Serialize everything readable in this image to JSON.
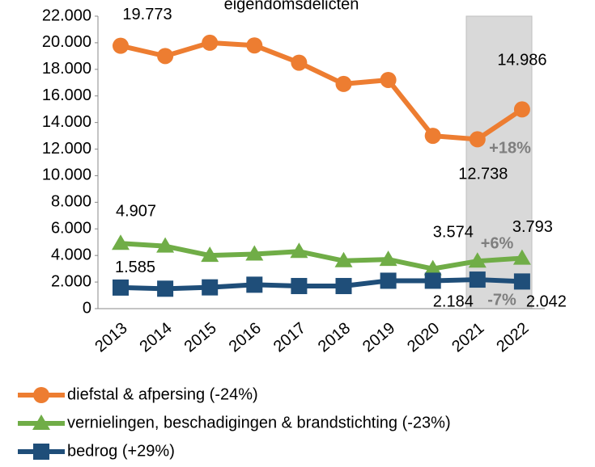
{
  "chart_data": {
    "type": "line",
    "title": "eigendomsdelicten",
    "categories": [
      "2013",
      "2014",
      "2015",
      "2016",
      "2017",
      "2018",
      "2019",
      "2020",
      "2021",
      "2022"
    ],
    "series": [
      {
        "name": "diefstal & afpersing (-24%)",
        "color": "#ED7D31",
        "marker": "circle",
        "values": [
          19773,
          19000,
          20000,
          19800,
          18500,
          16900,
          17200,
          13000,
          12738,
          14986
        ],
        "value_labels": [
          "19.773",
          null,
          null,
          null,
          null,
          null,
          null,
          null,
          "12.738",
          "14.986"
        ]
      },
      {
        "name": "vernielingen, beschadigingen & brandstichting (-23%)",
        "color": "#70AD47",
        "marker": "triangle",
        "values": [
          4907,
          4700,
          4000,
          4100,
          4300,
          3600,
          3700,
          3000,
          3574,
          3793
        ],
        "value_labels": [
          "4.907",
          null,
          null,
          null,
          null,
          null,
          null,
          null,
          "3.574",
          "3.793"
        ]
      },
      {
        "name": "bedrog (+29%)",
        "color": "#1F4E79",
        "marker": "square",
        "values": [
          1585,
          1500,
          1600,
          1800,
          1700,
          1700,
          2100,
          2100,
          2184,
          2042
        ],
        "value_labels": [
          "1.585",
          null,
          null,
          null,
          null,
          null,
          null,
          null,
          "2.184",
          "2.042"
        ]
      }
    ],
    "annotations": [
      "+18%",
      "+6%",
      "-7%"
    ],
    "ylim": [
      0,
      22000
    ],
    "yticks": [
      0,
      {
        "value": 2000,
        "label": "2.000"
      },
      {
        "value": 4000,
        "label": "4.000"
      },
      {
        "value": 6000,
        "label": "6.000"
      },
      {
        "value": 8000,
        "label": "8.000"
      },
      {
        "value": 10000,
        "label": "10.000"
      },
      {
        "value": 12000,
        "label": "12.000"
      },
      {
        "value": 14000,
        "label": "14.000"
      },
      {
        "value": 16000,
        "label": "16.000"
      },
      {
        "value": 18000,
        "label": "18.000"
      },
      {
        "value": 20000,
        "label": "20.000"
      },
      {
        "value": 22000,
        "label": "22.000"
      }
    ]
  }
}
